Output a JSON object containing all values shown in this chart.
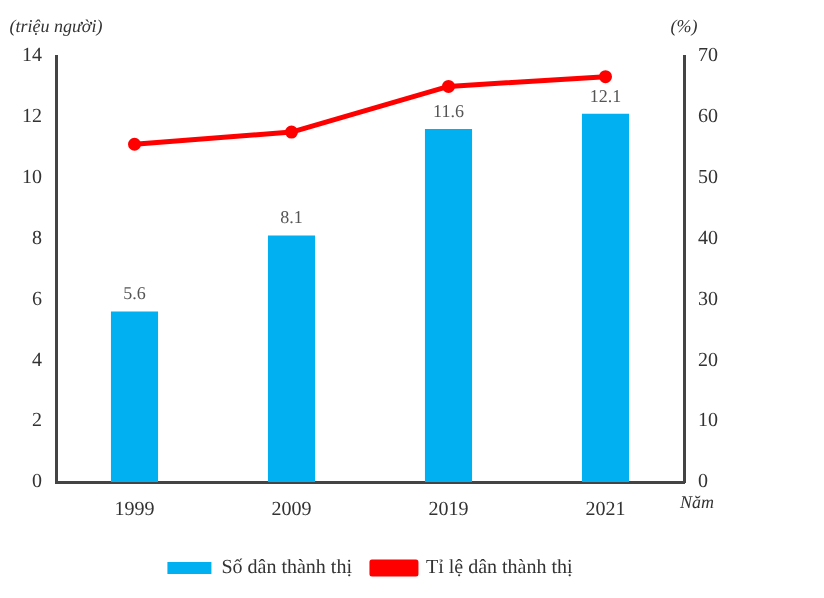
{
  "chart_data": {
    "type": "bar",
    "categories": [
      "1999",
      "2009",
      "2019",
      "2021"
    ],
    "series": [
      {
        "name": "Số dân thành thị",
        "color": "#00b0f0",
        "values": [
          5.6,
          8.1,
          11.6,
          12.1
        ],
        "value_labels": [
          "5.6",
          "8.1",
          "11.6",
          "12.1"
        ]
      },
      {
        "name": "Tỉ lệ dân thành thị",
        "type": "line",
        "axis": "y2",
        "color": "#ff0000",
        "values": [
          55.5,
          57.5,
          65.0,
          66.6
        ]
      }
    ],
    "ylabel": "(triệu người)",
    "y2label": "(%)",
    "xlabel": "Năm",
    "ylim": [
      0,
      14
    ],
    "yticks": [
      0,
      2,
      4,
      6,
      8,
      10,
      12,
      14
    ],
    "y2lim": [
      0,
      70
    ],
    "y2ticks": [
      0,
      10,
      20,
      30,
      40,
      50,
      60,
      70
    ],
    "grid": false,
    "legend": "bottom",
    "marker": "circle",
    "line_style": "solid"
  }
}
